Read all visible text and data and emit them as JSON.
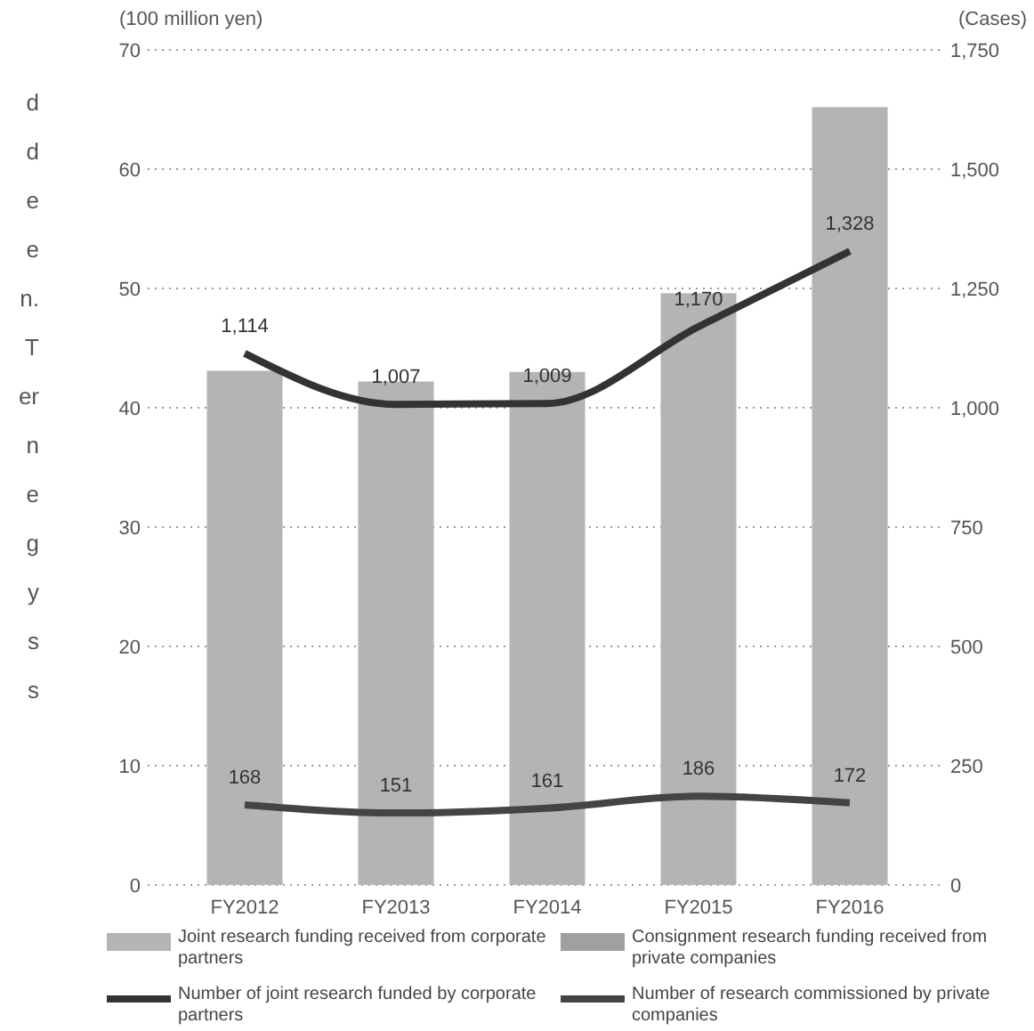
{
  "chart_data": {
    "type": "bar",
    "ylabel": "(100 million yen)",
    "y2label": "(Cases)",
    "categories": [
      "FY2012",
      "FY2013",
      "FY2014",
      "FY2015",
      "FY2016"
    ],
    "series": [
      {
        "name": "Joint research funding received from corporate partners",
        "color": "#b4b4b4",
        "values": [
          43.1,
          42.2,
          43,
          49.6,
          65.2
        ]
      },
      {
        "name": "Consignment research funding received from private companies",
        "color": "#a0a0a0",
        "values": [
          null,
          null,
          null,
          null,
          null
        ]
      },
      {
        "type": "line",
        "axis": "y2",
        "name": "Number of joint research funded by corporate partners",
        "color": "#333333",
        "values": [
          1114,
          1007,
          1009,
          1170,
          1328
        ],
        "value_labels": [
          "1,114",
          "1,007",
          "1,009",
          "1,170",
          "1,328"
        ]
      },
      {
        "type": "line",
        "axis": "y2",
        "name": "Number of research commissioned by private companies",
        "color": "#444444",
        "values": [
          168,
          151,
          161,
          186,
          172
        ],
        "value_labels": [
          "168",
          "151",
          "161",
          "186",
          "172"
        ]
      }
    ],
    "ylim": [
      0,
      70
    ],
    "yticks": [
      0,
      10,
      20,
      30,
      40,
      50,
      60,
      70
    ],
    "y2lim": [
      0,
      1750
    ],
    "y2ticks": [
      0,
      250,
      500,
      {
        "value": 750,
        "label": "750"
      },
      {
        "value": 1000,
        "label": "1,000"
      },
      {
        "value": 1250,
        "label": "1,250"
      },
      {
        "value": 1500,
        "label": "1,500"
      },
      {
        "value": 1750,
        "label": "1,750"
      }
    ],
    "grid": "y",
    "legend": "bottom",
    "marker": "none",
    "line_style": "solid",
    "annotations": [
      "d",
      "d",
      "e",
      "e",
      "n.",
      "T",
      "er",
      "n",
      "e",
      "g",
      "y",
      "s",
      "s"
    ]
  }
}
